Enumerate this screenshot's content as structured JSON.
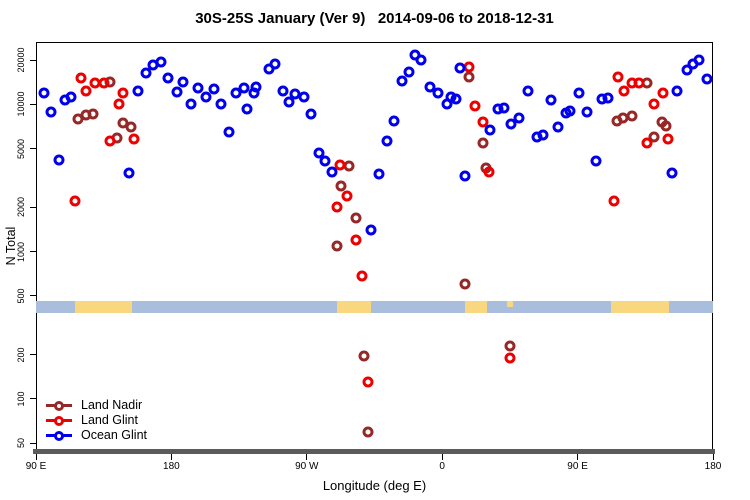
{
  "title": "30S-25S January (Ver 9)   2014-09-06 to 2018-12-31",
  "axes": {
    "x_label": "Longitude (deg E)",
    "y_label": "N Total",
    "x_ticks": [
      {
        "pos": 90,
        "label": "90 E"
      },
      {
        "pos": 180,
        "label": "180"
      },
      {
        "pos": 270,
        "label": "90 W"
      },
      {
        "pos": 360,
        "label": "0"
      },
      {
        "pos": 450,
        "label": "90 E"
      },
      {
        "pos": 540,
        "label": "180"
      }
    ],
    "y_ticks": [
      {
        "value": 50,
        "label": "50"
      },
      {
        "value": 100,
        "label": "100"
      },
      {
        "value": 200,
        "label": "200"
      },
      {
        "value": 500,
        "label": "500"
      },
      {
        "value": 1000,
        "label": "1000"
      },
      {
        "value": 2000,
        "label": "2000"
      },
      {
        "value": 5000,
        "label": "5000"
      },
      {
        "value": 10000,
        "label": "10000"
      },
      {
        "value": 20000,
        "label": "20000"
      }
    ]
  },
  "legend": {
    "items": [
      {
        "label": "Land Nadir",
        "series": "land_nadir"
      },
      {
        "label": "Land Glint",
        "series": "land_glint"
      },
      {
        "label": "Ocean Glint",
        "series": "ocean_glint"
      }
    ]
  },
  "colors": {
    "land_nadir": "#962828",
    "land_glint": "#EE0000",
    "ocean_glint": "#0000EE",
    "map_ocean": "#A8BEDC",
    "map_land": "#F9D77E",
    "axis_bar": "#5B5B5B",
    "frame": "#000000"
  },
  "map_band": {
    "segments": [
      {
        "from": 90,
        "to": 116,
        "type": "ocean"
      },
      {
        "from": 116,
        "to": 154,
        "type": "land"
      },
      {
        "from": 154,
        "to": 290,
        "type": "ocean"
      },
      {
        "from": 290,
        "to": 313,
        "type": "land"
      },
      {
        "from": 313,
        "to": 375,
        "type": "ocean"
      },
      {
        "from": 375,
        "to": 390,
        "type": "land"
      },
      {
        "from": 390,
        "to": 403,
        "type": "ocean"
      },
      {
        "from": 403,
        "to": 407,
        "type": "land_top"
      },
      {
        "from": 407,
        "to": 472,
        "type": "ocean"
      },
      {
        "from": 472,
        "to": 511,
        "type": "land"
      },
      {
        "from": 511,
        "to": 540,
        "type": "ocean"
      }
    ]
  },
  "chart_data": {
    "type": "scatter",
    "title": "30S-25S January (Ver 9)   2014-09-06 to 2018-12-31",
    "xlabel": "Longitude (deg E)",
    "ylabel": "N Total",
    "x_axis": {
      "range_deg_east": [
        90,
        540
      ],
      "wraps_globe": true,
      "tick_labels": [
        "90 E",
        "180",
        "90 W",
        "0",
        "90 E",
        "180"
      ]
    },
    "y_axis": {
      "scale": "log",
      "ticks": [
        50,
        100,
        200,
        500,
        1000,
        2000,
        5000,
        10000,
        20000
      ],
      "range": [
        45,
        26500
      ]
    },
    "legend_position": "bottom-left",
    "series": [
      {
        "name": "Land Nadir",
        "color": "#962828",
        "points": [
          [
            118,
            7900
          ],
          [
            123,
            8400
          ],
          [
            128,
            8600
          ],
          [
            139,
            14100
          ],
          [
            144,
            5900
          ],
          [
            148,
            7500
          ],
          [
            153,
            7000
          ],
          [
            290,
            1100
          ],
          [
            293,
            2800
          ],
          [
            298,
            3800
          ],
          [
            303,
            1700
          ],
          [
            308,
            195
          ],
          [
            311,
            60
          ],
          [
            375,
            600
          ],
          [
            378,
            15300
          ],
          [
            387,
            5500
          ],
          [
            389,
            3700
          ],
          [
            405,
            230
          ],
          [
            476,
            7700
          ],
          [
            480,
            8100
          ],
          [
            486,
            8300
          ],
          [
            496,
            13900
          ],
          [
            501,
            6000
          ],
          [
            506,
            7600
          ],
          [
            509,
            7100
          ]
        ]
      },
      {
        "name": "Land Glint",
        "color": "#EE0000",
        "points": [
          [
            116,
            2200
          ],
          [
            120,
            15100
          ],
          [
            123,
            12400
          ],
          [
            129,
            13900
          ],
          [
            135,
            13900
          ],
          [
            139,
            5600
          ],
          [
            145,
            10100
          ],
          [
            148,
            12000
          ],
          [
            155,
            5800
          ],
          [
            290,
            2000
          ],
          [
            292,
            3850
          ],
          [
            297,
            2400
          ],
          [
            303,
            1200
          ],
          [
            307,
            680
          ],
          [
            311,
            130
          ],
          [
            378,
            17900
          ],
          [
            382,
            9700
          ],
          [
            387,
            7600
          ],
          [
            391,
            3500
          ],
          [
            405,
            190
          ],
          [
            474,
            2200
          ],
          [
            477,
            15400
          ],
          [
            481,
            12400
          ],
          [
            486,
            13900
          ],
          [
            491,
            13900
          ],
          [
            496,
            5500
          ],
          [
            501,
            10100
          ],
          [
            507,
            12000
          ],
          [
            510,
            5800
          ]
        ]
      },
      {
        "name": "Ocean Glint",
        "color": "#0000EE",
        "points": [
          [
            95,
            12000
          ],
          [
            100,
            8900
          ],
          [
            105,
            4200
          ],
          [
            109,
            10700
          ],
          [
            113,
            11200
          ],
          [
            152,
            3400
          ],
          [
            158,
            12400
          ],
          [
            163,
            16200
          ],
          [
            168,
            18400
          ],
          [
            173,
            19500
          ],
          [
            178,
            15000
          ],
          [
            184,
            12200
          ],
          [
            188,
            14100
          ],
          [
            193,
            10100
          ],
          [
            198,
            13000
          ],
          [
            203,
            11200
          ],
          [
            208,
            12800
          ],
          [
            213,
            10100
          ],
          [
            218,
            6500
          ],
          [
            223,
            11900
          ],
          [
            228,
            13000
          ],
          [
            230,
            9300
          ],
          [
            235,
            12000
          ],
          [
            236,
            13100
          ],
          [
            245,
            17400
          ],
          [
            249,
            18800
          ],
          [
            254,
            12400
          ],
          [
            258,
            10300
          ],
          [
            262,
            11700
          ],
          [
            268,
            11200
          ],
          [
            273,
            8600
          ],
          [
            278,
            4700
          ],
          [
            282,
            4100
          ],
          [
            287,
            3450
          ],
          [
            313,
            1400
          ],
          [
            318,
            3350
          ],
          [
            323,
            5600
          ],
          [
            328,
            7700
          ],
          [
            333,
            14300
          ],
          [
            338,
            16700
          ],
          [
            342,
            21500
          ],
          [
            346,
            20100
          ],
          [
            352,
            13100
          ],
          [
            357,
            12000
          ],
          [
            363,
            10100
          ],
          [
            366,
            11300
          ],
          [
            369,
            10800
          ],
          [
            372,
            17600
          ],
          [
            375,
            3250
          ],
          [
            392,
            6700
          ],
          [
            397,
            9300
          ],
          [
            401,
            9500
          ],
          [
            406,
            7400
          ],
          [
            411,
            8100
          ],
          [
            417,
            12400
          ],
          [
            423,
            6000
          ],
          [
            427,
            6200
          ],
          [
            432,
            10700
          ],
          [
            437,
            7000
          ],
          [
            442,
            8800
          ],
          [
            445,
            9000
          ],
          [
            451,
            11900
          ],
          [
            456,
            8900
          ],
          [
            462,
            4100
          ],
          [
            466,
            10800
          ],
          [
            470,
            11000
          ],
          [
            513,
            3400
          ],
          [
            516,
            12400
          ],
          [
            523,
            17000
          ],
          [
            527,
            18700
          ],
          [
            531,
            20100
          ],
          [
            536,
            14800
          ]
        ]
      }
    ]
  }
}
